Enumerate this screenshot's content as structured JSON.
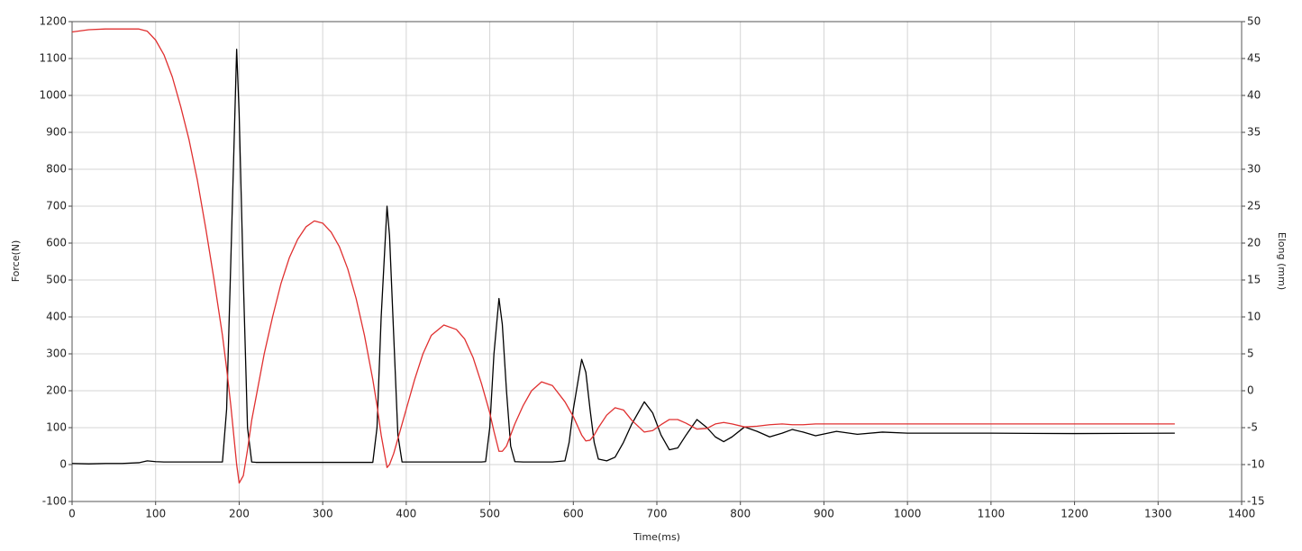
{
  "chart_data": {
    "type": "line",
    "x_label": "Time(ms)",
    "y_label": "Force(N)",
    "y2_label": "Elong (mm)",
    "grid": true,
    "xlim": [
      0,
      1400
    ],
    "xticks": [
      0,
      100,
      200,
      300,
      400,
      500,
      600,
      700,
      800,
      900,
      1000,
      1100,
      1200,
      1300,
      1400
    ],
    "ylim": [
      -100,
      1200
    ],
    "yticks": [
      -100,
      0,
      100,
      200,
      300,
      400,
      500,
      600,
      700,
      800,
      900,
      1000,
      1100,
      1200
    ],
    "y2lim": [
      -15,
      50
    ],
    "y2ticks": [
      -15,
      -10,
      -5,
      0,
      5,
      10,
      15,
      20,
      25,
      30,
      35,
      40,
      45,
      50
    ],
    "x": [
      0,
      20,
      40,
      60,
      80,
      90,
      100,
      110,
      120,
      130,
      140,
      150,
      160,
      170,
      180,
      185,
      190,
      197,
      200,
      205,
      210,
      215,
      220,
      230,
      240,
      250,
      260,
      270,
      280,
      290,
      300,
      310,
      320,
      330,
      340,
      350,
      360,
      365,
      370,
      377,
      380,
      385,
      390,
      395,
      400,
      410,
      420,
      430,
      445,
      460,
      470,
      480,
      490,
      495,
      500,
      505,
      511,
      515,
      520,
      525,
      530,
      540,
      550,
      562,
      575,
      590,
      595,
      600,
      610,
      615,
      620,
      625,
      630,
      640,
      650,
      660,
      670,
      685,
      695,
      705,
      715,
      725,
      735,
      748,
      760,
      770,
      780,
      790,
      805,
      820,
      835,
      850,
      862,
      875,
      890,
      915,
      940,
      970,
      1000,
      1100,
      1200,
      1320
    ],
    "series": [
      {
        "color": "#000000",
        "values": [
          3,
          2,
          3,
          3,
          5,
          10,
          8,
          7,
          7,
          7,
          7,
          7,
          7,
          7,
          7,
          150,
          550,
          1125,
          950,
          500,
          100,
          7,
          6,
          6,
          6,
          6,
          6,
          6,
          6,
          6,
          6,
          6,
          6,
          6,
          6,
          6,
          6,
          100,
          400,
          700,
          620,
          350,
          80,
          7,
          7,
          7,
          7,
          7,
          7,
          7,
          7,
          7,
          7,
          8,
          100,
          300,
          450,
          380,
          200,
          50,
          8,
          7,
          7,
          7,
          7,
          10,
          60,
          150,
          285,
          250,
          150,
          60,
          15,
          10,
          20,
          60,
          110,
          170,
          140,
          80,
          40,
          45,
          80,
          122,
          100,
          75,
          62,
          75,
          102,
          90,
          75,
          85,
          95,
          88,
          78,
          90,
          82,
          88,
          85,
          85,
          84,
          85
        ]
      },
      {
        "color": "#e03030",
        "axis": "y2",
        "values": [
          48.6,
          48.9,
          49,
          49,
          49,
          48.7,
          47.5,
          45.5,
          42.5,
          38.5,
          34,
          28.5,
          22,
          15,
          7.5,
          3,
          -2,
          -10,
          -12.5,
          -11.5,
          -8,
          -4,
          -1,
          5,
          10,
          14.5,
          18,
          20.5,
          22.2,
          23,
          22.7,
          21.5,
          19.5,
          16.5,
          12.5,
          7.5,
          1.5,
          -2,
          -6,
          -10.4,
          -10,
          -8.5,
          -6.5,
          -4.5,
          -2.5,
          1.5,
          5,
          7.5,
          8.9,
          8.3,
          7,
          4.5,
          1,
          -1,
          -3,
          -5.5,
          -8.2,
          -8.2,
          -7.5,
          -6,
          -4.5,
          -2,
          0,
          1.2,
          0.7,
          -1.5,
          -2.5,
          -3.5,
          -6,
          -6.8,
          -6.7,
          -6,
          -5,
          -3.3,
          -2.3,
          -2.6,
          -4,
          -5.6,
          -5.4,
          -4.6,
          -3.9,
          -3.9,
          -4.4,
          -5.2,
          -5.1,
          -4.5,
          -4.3,
          -4.5,
          -4.9,
          -4.8,
          -4.6,
          -4.5,
          -4.6,
          -4.6,
          -4.5,
          -4.5,
          -4.5,
          -4.5,
          -4.5,
          -4.5,
          -4.5,
          -4.5
        ]
      }
    ]
  }
}
